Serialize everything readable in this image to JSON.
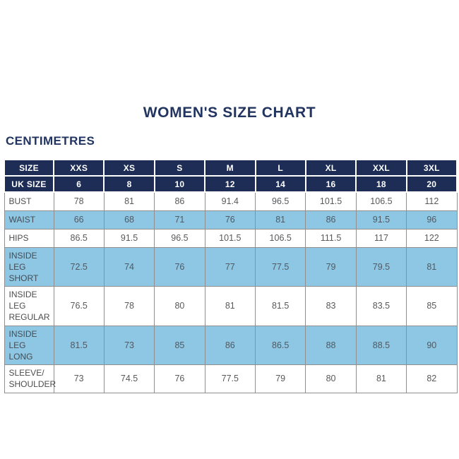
{
  "page": {
    "title": "WOMEN'S SIZE CHART",
    "unit_label": "CENTIMETRES"
  },
  "colors": {
    "navy_header": "#1d2d56",
    "title_navy": "#213560",
    "shaded_row_blue": "#8ec7e3",
    "border_gray": "#8f8f8f",
    "value_text_gray": "#58595b",
    "label_text_gray": "#4d4d4d",
    "header_text": "#ffffff",
    "background": "#ffffff"
  },
  "table": {
    "header_rows": [
      {
        "name": "size-row",
        "cells": [
          "SIZE",
          "XXS",
          "XS",
          "S",
          "M",
          "L",
          "XL",
          "XXL",
          "3XL"
        ]
      },
      {
        "name": "uk-size-row",
        "cells": [
          "UK SIZE",
          "6",
          "8",
          "10",
          "12",
          "14",
          "16",
          "18",
          "20"
        ]
      }
    ],
    "body_rows": [
      {
        "label": "BUST",
        "shaded": false,
        "values": [
          "78",
          "81",
          "86",
          "91.4",
          "96.5",
          "101.5",
          "106.5",
          "112"
        ]
      },
      {
        "label": "WAIST",
        "shaded": true,
        "values": [
          "66",
          "68",
          "71",
          "76",
          "81",
          "86",
          "91.5",
          "96"
        ]
      },
      {
        "label": "HIPS",
        "shaded": false,
        "values": [
          "86.5",
          "91.5",
          "96.5",
          "101.5",
          "106.5",
          "111.5",
          "117",
          "122"
        ]
      },
      {
        "label": "INSIDE LEG SHORT",
        "shaded": true,
        "values": [
          "72.5",
          "74",
          "76",
          "77",
          "77.5",
          "79",
          "79.5",
          "81"
        ]
      },
      {
        "label": "INSIDE LEG REGULAR",
        "shaded": false,
        "values": [
          "76.5",
          "78",
          "80",
          "81",
          "81.5",
          "83",
          "83.5",
          "85"
        ]
      },
      {
        "label": "INSIDE LEG LONG",
        "shaded": true,
        "values": [
          "81.5",
          "73",
          "85",
          "86",
          "86.5",
          "88",
          "88.5",
          "90"
        ]
      },
      {
        "label": "SLEEVE/SHOULDER",
        "shaded": false,
        "values": [
          "73",
          "74.5",
          "76",
          "77.5",
          "79",
          "80",
          "81",
          "82"
        ]
      }
    ]
  },
  "chart_data": {
    "type": "table",
    "title": "WOMEN'S SIZE CHART",
    "unit": "CENTIMETRES",
    "columns": [
      "SIZE",
      "XXS",
      "XS",
      "S",
      "M",
      "L",
      "XL",
      "XXL",
      "3XL"
    ],
    "uk_sizes": [
      6,
      8,
      10,
      12,
      14,
      16,
      18,
      20
    ],
    "rows": [
      {
        "measurement": "BUST",
        "values": [
          78,
          81,
          86,
          91.4,
          96.5,
          101.5,
          106.5,
          112
        ]
      },
      {
        "measurement": "WAIST",
        "values": [
          66,
          68,
          71,
          76,
          81,
          86,
          91.5,
          96
        ]
      },
      {
        "measurement": "HIPS",
        "values": [
          86.5,
          91.5,
          96.5,
          101.5,
          106.5,
          111.5,
          117,
          122
        ]
      },
      {
        "measurement": "INSIDE LEG SHORT",
        "values": [
          72.5,
          74,
          76,
          77,
          77.5,
          79,
          79.5,
          81
        ]
      },
      {
        "measurement": "INSIDE LEG REGULAR",
        "values": [
          76.5,
          78,
          80,
          81,
          81.5,
          83,
          83.5,
          85
        ]
      },
      {
        "measurement": "INSIDE LEG LONG",
        "values": [
          81.5,
          73,
          85,
          86,
          86.5,
          88,
          88.5,
          90
        ]
      },
      {
        "measurement": "SLEEVE/SHOULDER",
        "values": [
          73,
          74.5,
          76,
          77.5,
          79,
          80,
          81,
          82
        ]
      }
    ]
  }
}
